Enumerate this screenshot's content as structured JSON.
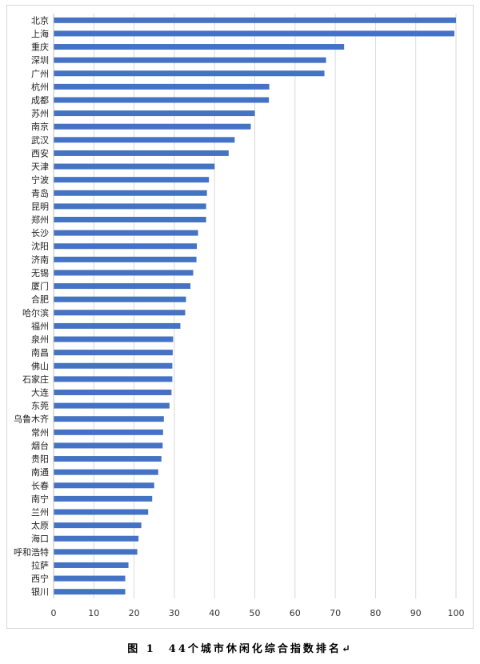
{
  "chart_data": {
    "type": "bar",
    "orientation": "horizontal",
    "categories": [
      "北京",
      "上海",
      "重庆",
      "深圳",
      "广州",
      "杭州",
      "成都",
      "苏州",
      "南京",
      "武汉",
      "西安",
      "天津",
      "宁波",
      "青岛",
      "昆明",
      "郑州",
      "长沙",
      "沈阳",
      "济南",
      "无锡",
      "厦门",
      "合肥",
      "哈尔滨",
      "福州",
      "泉州",
      "南昌",
      "佛山",
      "石家庄",
      "大连",
      "东莞",
      "乌鲁木齐",
      "常州",
      "烟台",
      "贵阳",
      "南通",
      "长春",
      "南宁",
      "兰州",
      "太原",
      "海口",
      "呼和浩特",
      "拉萨",
      "西宁",
      "银川"
    ],
    "values": [
      100,
      99.6,
      72.2,
      67.7,
      67.3,
      53.6,
      53.5,
      50.0,
      49.0,
      45.0,
      43.5,
      40.0,
      38.6,
      38.1,
      37.9,
      37.9,
      35.9,
      35.6,
      35.5,
      34.7,
      34.0,
      32.9,
      32.7,
      31.5,
      29.7,
      29.6,
      29.5,
      29.5,
      29.3,
      28.8,
      27.4,
      27.2,
      27.1,
      26.8,
      26.0,
      25.0,
      24.5,
      23.5,
      21.8,
      21.1,
      20.8,
      18.6,
      17.8,
      17.8
    ],
    "xlim": [
      0,
      100
    ],
    "x_ticks": [
      0,
      10,
      20,
      30,
      40,
      50,
      60,
      70,
      80,
      90,
      100
    ],
    "grid": true,
    "bar_color": "#4472c4",
    "grid_color": "#d9d9d9"
  },
  "caption": "图 1　44个城市休闲化综合指数排名↵"
}
